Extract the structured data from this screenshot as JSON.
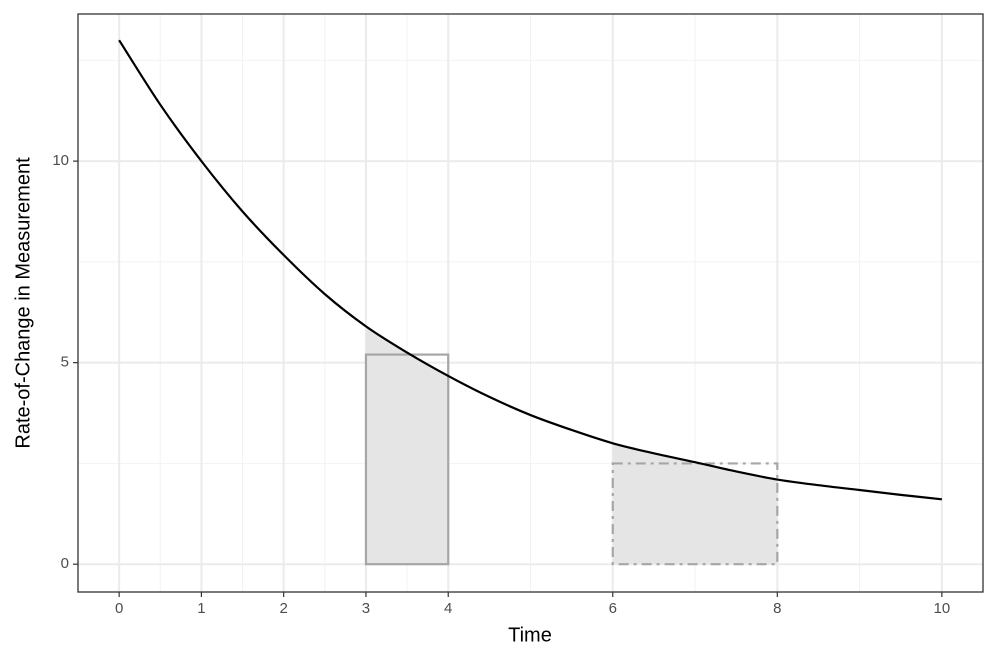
{
  "chart_data": {
    "type": "line",
    "x_label": "Time",
    "y_label": "Rate-of-Change in Measurement",
    "x": [
      0,
      0.5,
      1,
      1.5,
      2,
      2.5,
      3,
      3.5,
      4,
      4.5,
      5,
      5.5,
      6,
      6.5,
      7,
      7.5,
      8,
      8.5,
      9,
      9.5,
      10
    ],
    "series": [
      {
        "color": "#000000",
        "values": [
          13,
          11.4,
          10,
          8.75,
          7.67,
          6.7,
          5.9,
          5.25,
          4.67,
          4.15,
          3.7,
          3.33,
          3.0,
          2.75,
          2.53,
          2.3,
          2.1,
          1.96,
          1.84,
          1.72,
          1.61
        ]
      }
    ],
    "shade_intervals": [
      [
        3,
        4
      ],
      [
        6,
        8
      ]
    ],
    "shade_color": "#e5e5e5",
    "rectangles": [
      {
        "x": [
          3,
          4
        ],
        "height": 5.2,
        "linestyle": "solid"
      },
      {
        "x": [
          6,
          8
        ],
        "height": 2.5,
        "linestyle": "dashdot"
      }
    ],
    "rectangle_color": "#a6a6a6",
    "xlim": [
      -0.5,
      10.5
    ],
    "xticks": [
      0,
      1,
      2,
      3,
      4,
      6,
      8,
      10
    ],
    "x_minor_ticks": [
      0.5,
      1.5,
      2.5,
      3.5,
      5,
      7,
      9
    ],
    "ylim": [
      -0.69,
      13.65
    ],
    "yticks": [
      0,
      5,
      10
    ],
    "y_minor_ticks": [
      2.5,
      7.5,
      12.5
    ],
    "grid": true
  }
}
